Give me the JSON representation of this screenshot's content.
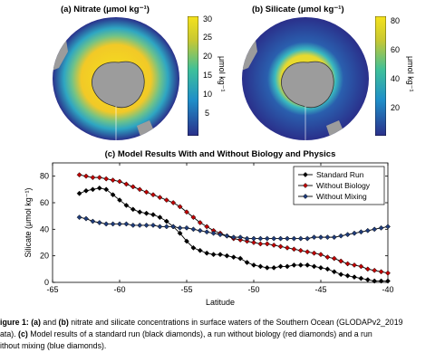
{
  "panel_a": {
    "title": "(a)  Nitrate (μmol kg⁻¹)",
    "colorbar_ticks": [
      "30",
      "25",
      "20",
      "15",
      "10",
      "5"
    ],
    "colorbar_label": "μmol kg⁻¹",
    "colorbar_range": [
      0,
      32
    ]
  },
  "panel_b": {
    "title": "(b)  Silicate (μmol kg⁻¹)",
    "colorbar_ticks": [
      "80",
      "60",
      "40",
      "20"
    ],
    "colorbar_label": "μmol kg⁻¹",
    "colorbar_range": [
      0,
      85
    ]
  },
  "colors": {
    "map_high": "#f5e21c",
    "map_mid": "#2fb8c0",
    "map_low": "#2a2f8a",
    "land": "#9c9c9c",
    "standard": "#000000",
    "without_biology": "#c00000",
    "without_mixing": "#1f3c7a"
  },
  "caption": {
    "line1_bold": "igure 1: (a)",
    "line1_mid": " and ",
    "line1_bold2": "(b)",
    "line1_rest": " nitrate and silicate concentrations in surface waters of the Southern Ocean (GLODAPv2_2019",
    "line2_start": "ata). ",
    "line2_bold": "(c)",
    "line2_rest": " Model results of a standard run (black diamonds), a run without biology (red diamonds) and a run",
    "line3": "ithout mixing (blue diamonds)."
  },
  "chart_data": {
    "type": "line",
    "title": "(c)  Model Results With and Without Biology and Physics",
    "xlabel": "Latitude",
    "ylabel": "Silicate (μmol kg⁻¹)",
    "xlim": [
      -65,
      -40
    ],
    "ylim": [
      0,
      90
    ],
    "xticks": [
      -65,
      -60,
      -55,
      -50,
      -45,
      -40
    ],
    "yticks": [
      0,
      20,
      40,
      60,
      80
    ],
    "grid": false,
    "legend_position": "top-right",
    "x": [
      -63,
      -62.5,
      -62,
      -61.5,
      -61,
      -60.5,
      -60,
      -59.5,
      -59,
      -58.5,
      -58,
      -57.5,
      -57,
      -56.5,
      -56,
      -55.5,
      -55,
      -54.5,
      -54,
      -53.5,
      -53,
      -52.5,
      -52,
      -51.5,
      -51,
      -50.5,
      -50,
      -49.5,
      -49,
      -48.5,
      -48,
      -47.5,
      -47,
      -46.5,
      -46,
      -45.5,
      -45,
      -44.5,
      -44,
      -43.5,
      -43,
      -42.5,
      -42,
      -41.5,
      -41,
      -40.5,
      -40
    ],
    "series": [
      {
        "name": "Standard Run",
        "marker_color": "#000000",
        "values": [
          67,
          69,
          70,
          71,
          70,
          66,
          62,
          58,
          55,
          53,
          52,
          51,
          49,
          46,
          42,
          37,
          31,
          26,
          24,
          22,
          21,
          21,
          20,
          19,
          18,
          15,
          13,
          12,
          11,
          11,
          12,
          12,
          13,
          13,
          13,
          12,
          11,
          10,
          8,
          6,
          5,
          4,
          3,
          2,
          1,
          1,
          1
        ]
      },
      {
        "name": "Without Biology",
        "marker_color": "#c00000",
        "values": [
          81,
          80,
          79,
          79,
          78,
          77,
          76,
          74,
          72,
          70,
          68,
          66,
          64,
          62,
          60,
          57,
          53,
          49,
          45,
          42,
          39,
          37,
          35,
          33,
          32,
          31,
          30,
          29,
          29,
          28,
          27,
          26,
          25,
          24,
          23,
          22,
          21,
          19,
          18,
          16,
          14,
          13,
          12,
          10,
          9,
          8,
          7
        ]
      },
      {
        "name": "Without Mixing",
        "marker_color": "#1f3c7a",
        "values": [
          49,
          48,
          46,
          45,
          44,
          44,
          44,
          44,
          43,
          43,
          43,
          43,
          42,
          42,
          42,
          41,
          41,
          40,
          39,
          38,
          37,
          36,
          35,
          34,
          34,
          33,
          33,
          33,
          33,
          33,
          33,
          33,
          33,
          33,
          33,
          34,
          34,
          34,
          34,
          35,
          36,
          37,
          38,
          39,
          40,
          41,
          42
        ]
      }
    ]
  }
}
